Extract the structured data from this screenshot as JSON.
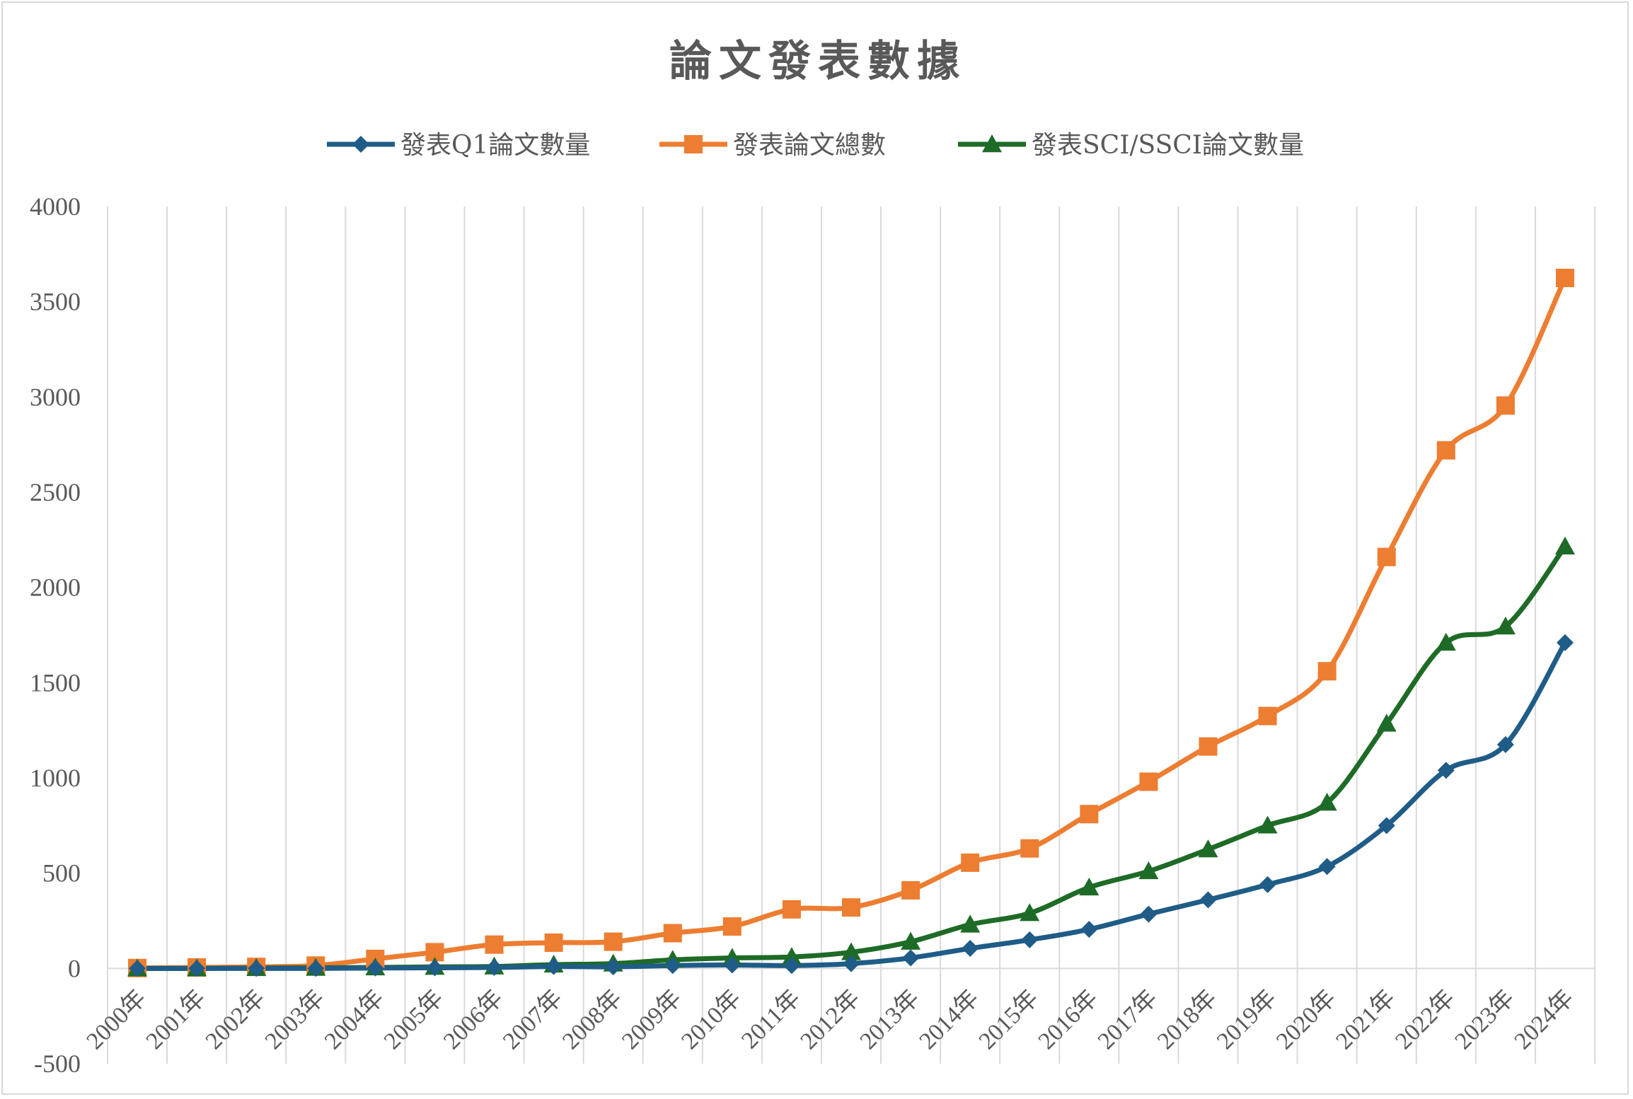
{
  "chart_data": {
    "type": "line",
    "title": "論文發表數據",
    "xlabel": "",
    "ylabel": "",
    "ylim": [
      -500,
      4000
    ],
    "yticks": [
      -500,
      0,
      500,
      1000,
      1500,
      2000,
      2500,
      3000,
      3500,
      4000
    ],
    "grid": "vertical",
    "legend_position": "top",
    "categories": [
      "2000年",
      "2001年",
      "2002年",
      "2003年",
      "2004年",
      "2005年",
      "2006年",
      "2007年",
      "2008年",
      "2009年",
      "2010年",
      "2011年",
      "2012年",
      "2013年",
      "2014年",
      "2015年",
      "2016年",
      "2017年",
      "2018年",
      "2019年",
      "2020年",
      "2021年",
      "2022年",
      "2023年",
      "2024年"
    ],
    "series": [
      {
        "name": "發表Q1論文數量",
        "color": "#1f5c87",
        "marker": "diamond",
        "values": [
          0,
          0,
          0,
          0,
          2,
          3,
          5,
          10,
          8,
          15,
          18,
          15,
          25,
          55,
          105,
          150,
          205,
          285,
          360,
          440,
          535,
          750,
          1040,
          1175,
          1710
        ]
      },
      {
        "name": "發表論文總數",
        "color": "#ed7d31",
        "marker": "square",
        "values": [
          2,
          5,
          8,
          15,
          50,
          85,
          125,
          135,
          140,
          185,
          220,
          310,
          320,
          410,
          555,
          630,
          810,
          980,
          1165,
          1325,
          1560,
          2160,
          2720,
          2955,
          3625
        ]
      },
      {
        "name": "發表SCI/SSCI論文數量",
        "color": "#1e6b27",
        "marker": "triangle",
        "values": [
          0,
          0,
          2,
          3,
          5,
          8,
          10,
          20,
          25,
          45,
          55,
          60,
          85,
          140,
          230,
          290,
          425,
          510,
          625,
          750,
          870,
          1285,
          1710,
          1795,
          2215
        ]
      }
    ]
  }
}
